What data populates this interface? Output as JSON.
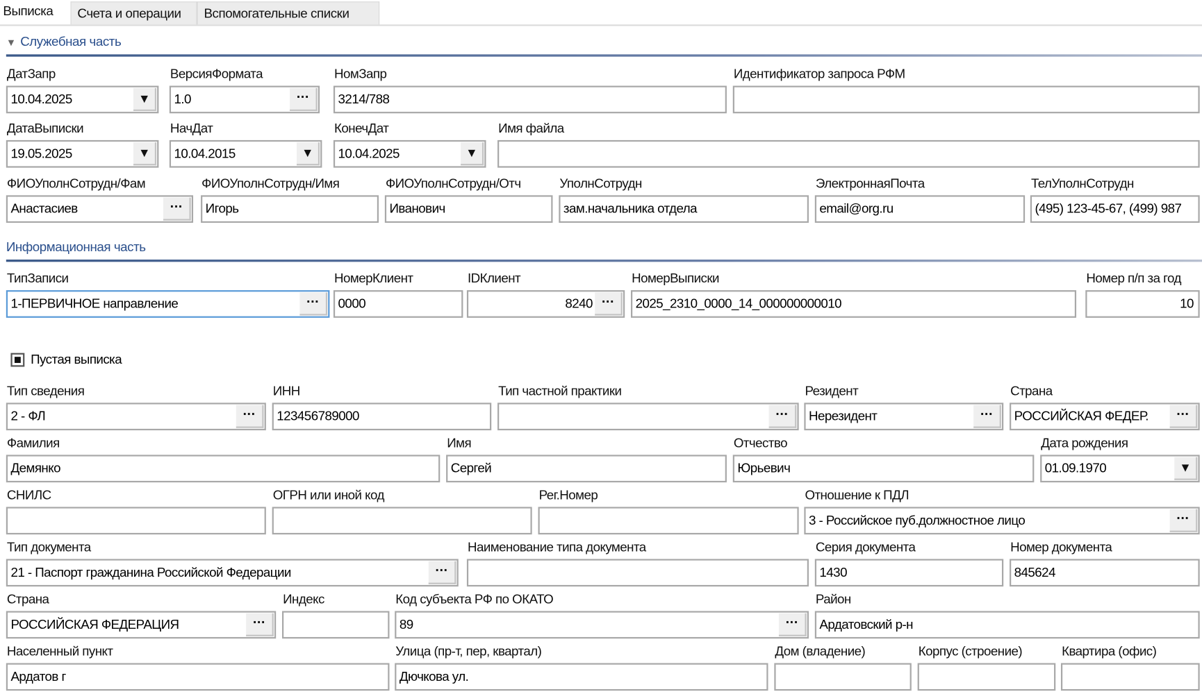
{
  "tabs": [
    {
      "label": "Выписка",
      "active": true
    },
    {
      "label": "Счета и операции",
      "active": false
    },
    {
      "label": "Вспомогательные списки",
      "active": false
    }
  ],
  "service": {
    "title": "Служебная часть",
    "fields": [
      {
        "label": "ДатЗапр",
        "value": "10.04.2025"
      },
      {
        "label": "ВерсияФормата",
        "value": "1.0"
      },
      {
        "label": "НомЗапр",
        "value": "3214/788"
      },
      {
        "label": "Идентификатор запроса РФМ",
        "value": ""
      },
      {
        "label": "ДатаВыписки",
        "value": "19.05.2025"
      },
      {
        "label": "НачДат",
        "value": "10.04.2015"
      },
      {
        "label": "КонечДат",
        "value": "10.04.2025"
      },
      {
        "label": "Имя файла",
        "value": ""
      },
      {
        "label": "ФИОУполнСотрудн/Фам",
        "value": "Анастасиев"
      },
      {
        "label": "ФИОУполнСотрудн/Имя",
        "value": "Игорь"
      },
      {
        "label": "ФИОУполнСотрудн/Отч",
        "value": "Иванович"
      },
      {
        "label": "УполнСотрудн",
        "value": "зам.начальника отдела"
      },
      {
        "label": "ЭлектроннаяПочта",
        "value": "email@org.ru"
      },
      {
        "label": "ТелУполнСотрудн",
        "value": "(495) 123-45-67, (499) 987"
      }
    ]
  },
  "info": {
    "title": "Информационная часть",
    "fields": [
      {
        "label": "ТипЗаписи",
        "value": "1-ПЕРВИЧНОЕ направление"
      },
      {
        "label": "НомерКлиент",
        "value": "0000"
      },
      {
        "label": "IDКлиент",
        "value": "8240"
      },
      {
        "label": "НомерВыписки",
        "value": "2025_2310_0000_14_000000000010"
      },
      {
        "label": "Номер п/п за год",
        "value": "10"
      }
    ],
    "empty_statement": {
      "label": "Пустая выписка",
      "checked": true
    }
  },
  "person": {
    "fields": [
      {
        "label": "Тип сведения",
        "value": "2 - ФЛ"
      },
      {
        "label": "ИНН",
        "value": "123456789000"
      },
      {
        "label": "Тип частной практики",
        "value": ""
      },
      {
        "label": "Резидент",
        "value": "Нерезидент"
      },
      {
        "label": "Страна",
        "value": "РОССИЙСКАЯ ФЕДЕР."
      },
      {
        "label": "Фамилия",
        "value": "Демянко"
      },
      {
        "label": "Имя",
        "value": "Сергей"
      },
      {
        "label": "Отчество",
        "value": "Юрьевич"
      },
      {
        "label": "Дата рождения",
        "value": "01.09.1970"
      },
      {
        "label": "СНИЛС",
        "value": ""
      },
      {
        "label": "ОГРН или иной код",
        "value": ""
      },
      {
        "label": "Рег.Номер",
        "value": ""
      },
      {
        "label": "Отношение к ПДЛ",
        "value": "3 - Российское пуб.должностное лицо"
      },
      {
        "label": "Тип документа",
        "value": "21 - Паспорт гражданина Российской Федерации"
      },
      {
        "label": "Наименование типа документа",
        "value": ""
      },
      {
        "label": "Серия документа",
        "value": "1430"
      },
      {
        "label": "Номер документа",
        "value": "845624"
      },
      {
        "label": "Страна",
        "value": "РОССИЙСКАЯ ФЕДЕРАЦИЯ"
      },
      {
        "label": "Индекс",
        "value": ""
      },
      {
        "label": "Код субъекта РФ по ОКАТО",
        "value": "89"
      },
      {
        "label": "Район",
        "value": "Ардатовский р-н"
      },
      {
        "label": "Населенный пункт",
        "value": "Ардатов г"
      },
      {
        "label": "Улица (пр-т, пер, квартал)",
        "value": "Дючкова ул."
      },
      {
        "label": "Дом (владение)",
        "value": ""
      },
      {
        "label": "Корпус (строение)",
        "value": ""
      },
      {
        "label": "Квартира (офис)",
        "value": ""
      }
    ]
  },
  "buttons": {
    "ellipsis": "···",
    "dropdown": "▼"
  },
  "icons": {
    "collapse": "▼"
  },
  "colors": {
    "section_title": "#2a4f8c",
    "focus_border": "#5a9ad8"
  }
}
